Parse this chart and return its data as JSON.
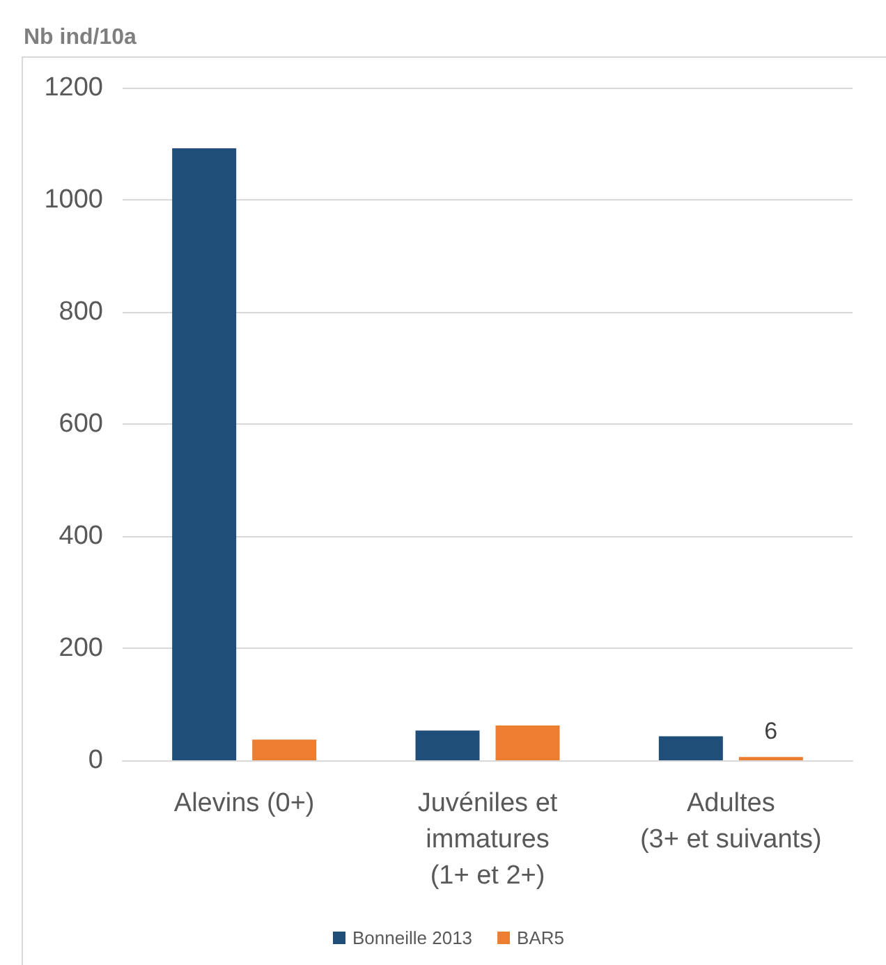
{
  "chart_data": {
    "type": "bar",
    "ylabel": "Nb ind/10a",
    "categories": [
      "Alevins (0+)",
      "Juvéniles et\nimmatures\n(1+ et 2+)",
      "Adultes\n(3+ et suivants)"
    ],
    "series": [
      {
        "name": "Bonneille 2013",
        "color": "#1f4e79",
        "values": [
          1092,
          53,
          43
        ]
      },
      {
        "name": "BAR5",
        "color": "#ed7d31",
        "values": [
          37,
          62,
          6
        ],
        "value_labels": [
          null,
          null,
          "6"
        ]
      }
    ],
    "ylim": [
      0,
      1200
    ],
    "yticks": [
      0,
      200,
      400,
      600,
      800,
      1000,
      1200
    ],
    "grid": "y",
    "legend": "bottom"
  }
}
